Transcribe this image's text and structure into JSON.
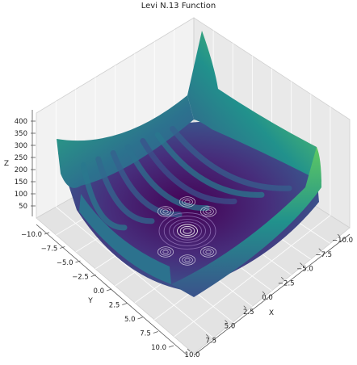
{
  "chart_data": {
    "type": "surface3d",
    "title": "Levi N.13 Function",
    "xlabel": "X",
    "ylabel": "Y",
    "zlabel": "Z",
    "xlim": [
      -10,
      10
    ],
    "ylim": [
      -10,
      10
    ],
    "zlim": [
      0,
      420
    ],
    "xticks": [
      "10.0",
      "7.5",
      "5.0",
      "2.5",
      "0.0",
      "−2.5",
      "−5.0",
      "−7.5",
      "−10.0"
    ],
    "yticks": [
      "−10.0",
      "−7.5",
      "−5.0",
      "−2.5",
      "0.0",
      "2.5",
      "5.0",
      "7.5",
      "10.0"
    ],
    "zticks": [
      "400",
      "350",
      "300",
      "250",
      "200",
      "150",
      "100",
      "50"
    ],
    "colormap": "viridis",
    "colormap_stops": [
      "#440154",
      "#3b528b",
      "#21918c",
      "#5ec962",
      "#fde725"
    ],
    "grid": true,
    "contour_center": [
      1,
      1
    ]
  }
}
